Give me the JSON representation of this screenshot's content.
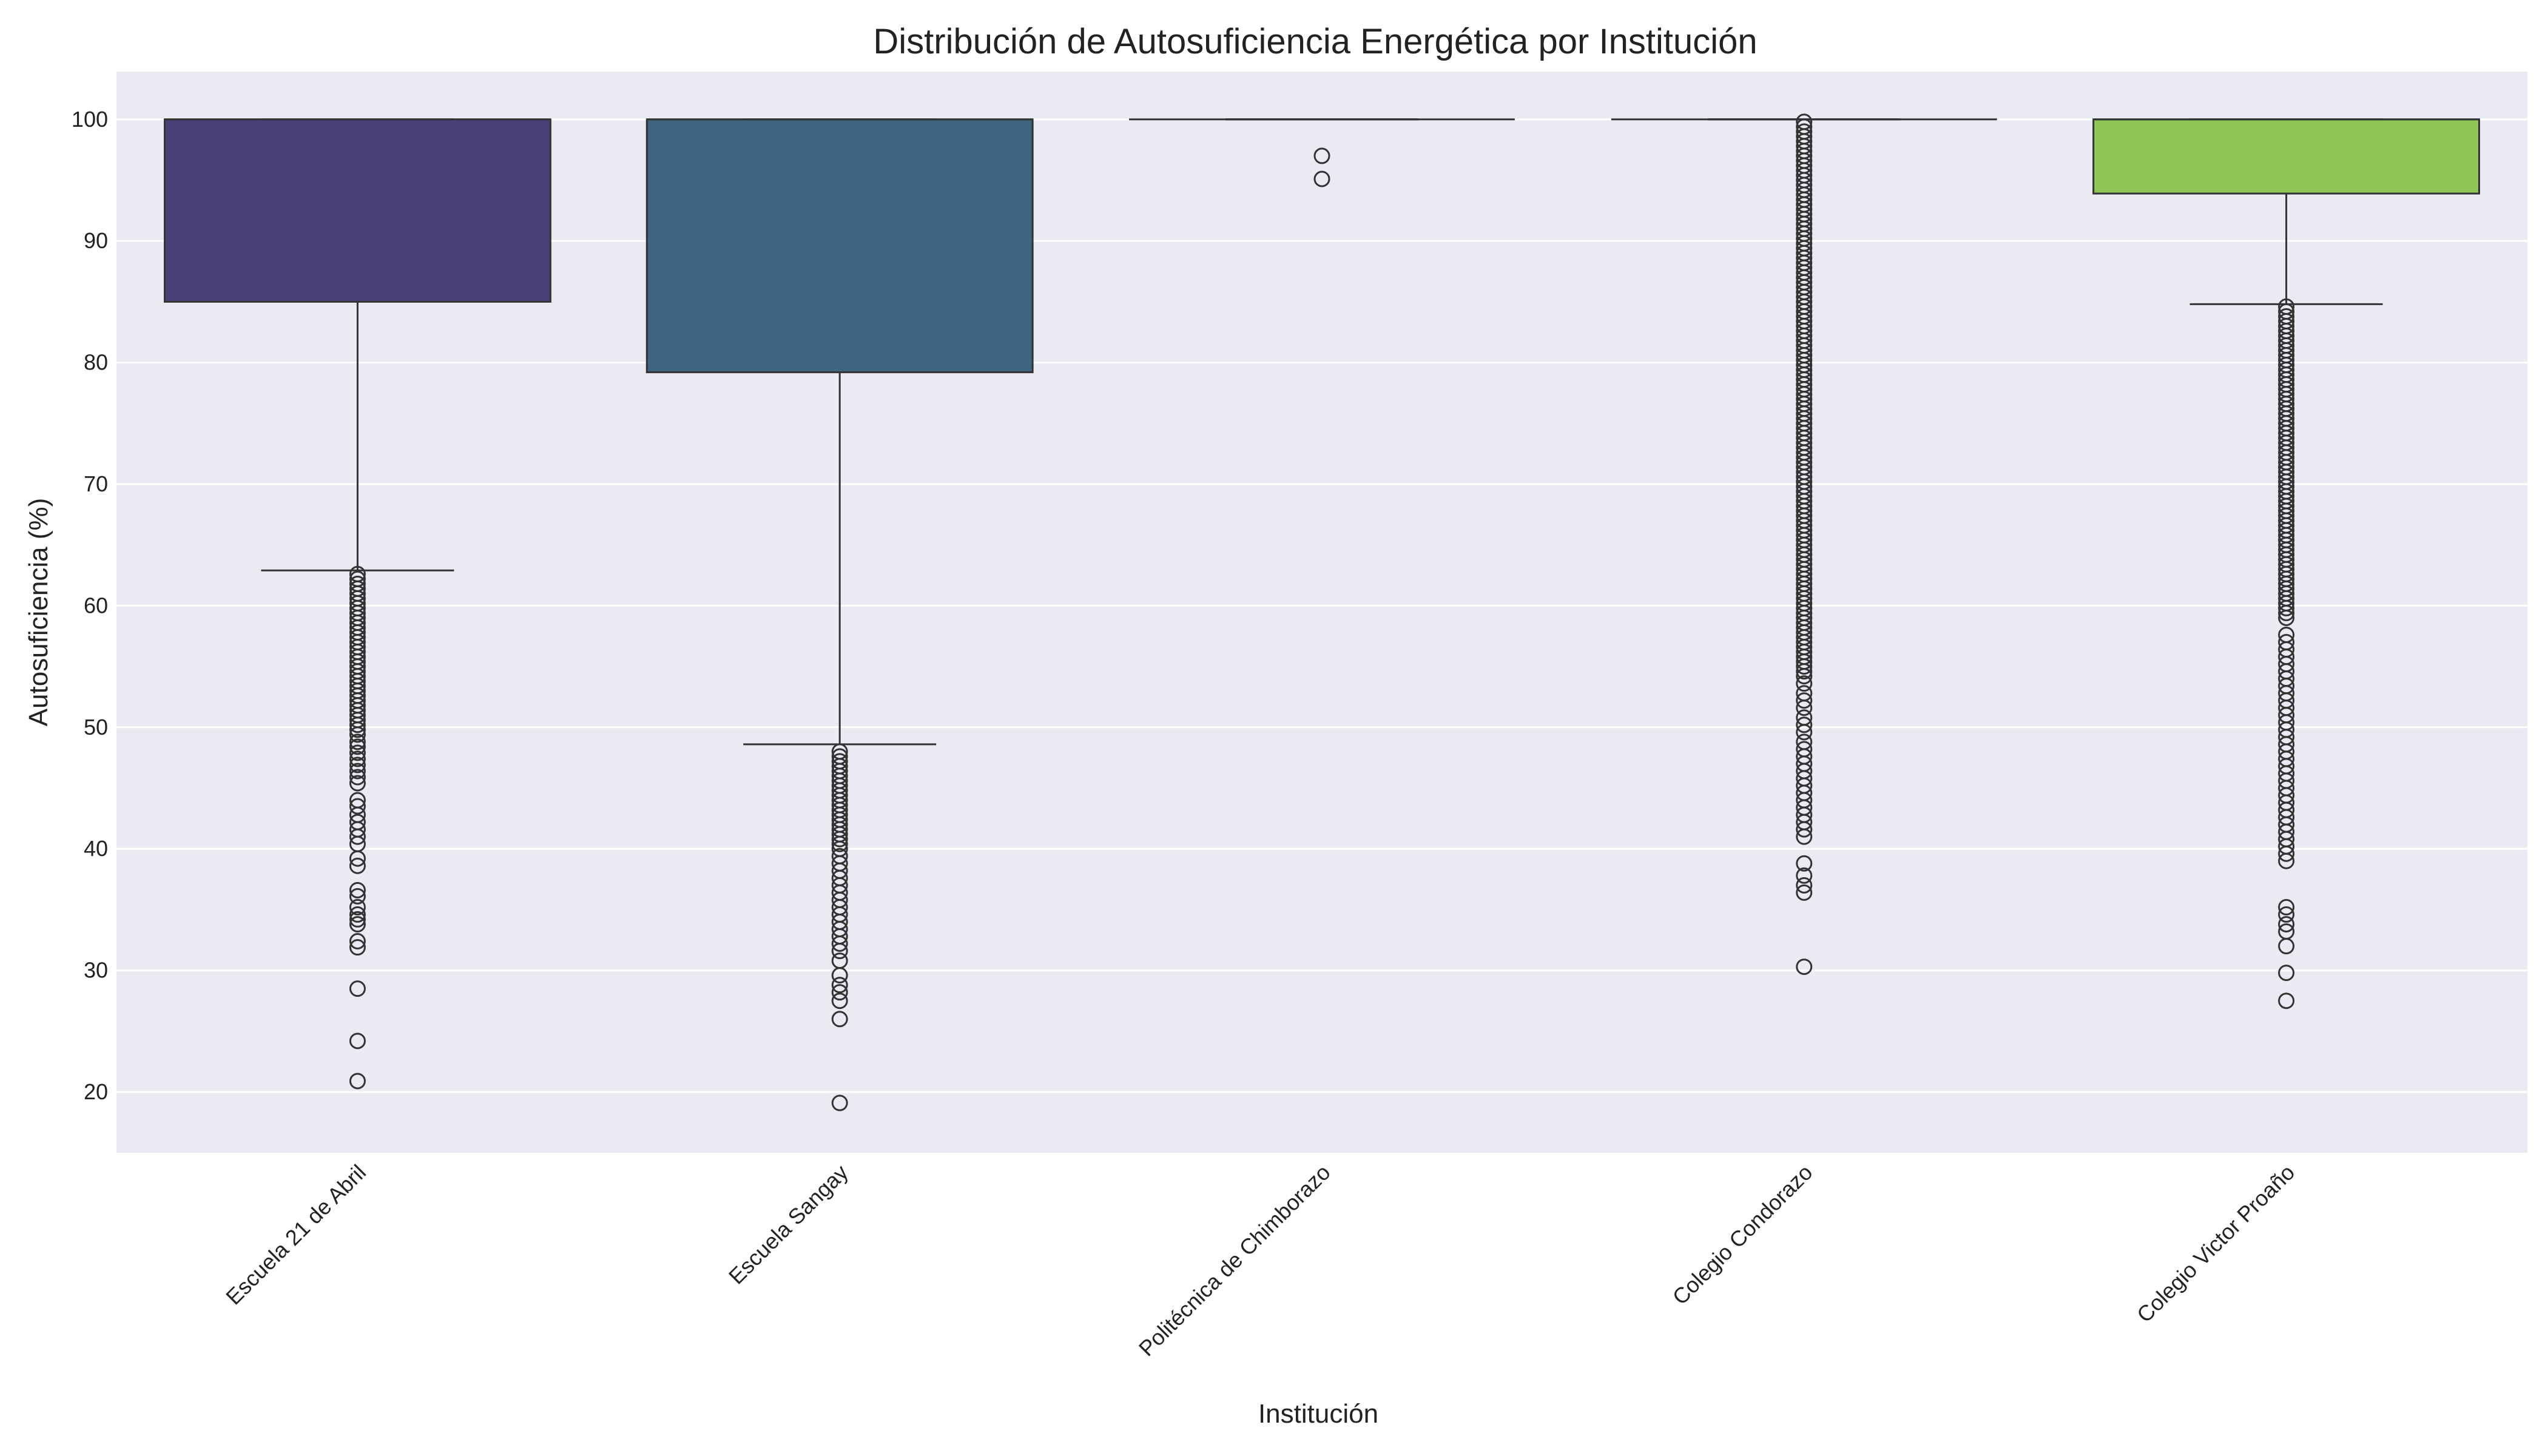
{
  "chart_data": {
    "type": "box",
    "title": "Distribución de Autosuficiencia Energética por Institución",
    "xlabel": "Institución",
    "ylabel": "Autosuficiencia (%)",
    "ylim": [
      15,
      104
    ],
    "yticks": [
      20,
      30,
      40,
      50,
      60,
      70,
      80,
      90,
      100
    ],
    "grid": true,
    "background": "#eaeaf2",
    "categories": [
      "Escuela 21 de Abril",
      "Escuela Sangay",
      "Politécnica de Chimborazo",
      "Colegio Condorazo",
      "Colegio Victor Proaño"
    ],
    "series": [
      {
        "category": "Escuela 21 de Abril",
        "color": "#4a3f77",
        "q1": 85.0,
        "median": 100,
        "q3": 100,
        "whisker_low": 62.9,
        "whisker_high": 100,
        "outliers": [
          62.6,
          62.2,
          61.8,
          61.4,
          61.0,
          60.6,
          60.2,
          59.8,
          59.4,
          59.0,
          58.6,
          58.2,
          57.8,
          57.4,
          57.0,
          56.6,
          56.2,
          55.8,
          55.4,
          55.0,
          54.6,
          54.2,
          53.8,
          53.4,
          53.0,
          52.6,
          52.2,
          51.8,
          51.4,
          51.0,
          50.6,
          50.2,
          49.8,
          49.4,
          48.8,
          48.4,
          47.9,
          47.4,
          46.9,
          46.4,
          45.9,
          45.4,
          44.0,
          43.5,
          42.8,
          42.2,
          41.6,
          41.0,
          40.4,
          39.2,
          38.6,
          36.6,
          36.1,
          35.2,
          34.6,
          34.2,
          33.8,
          32.4,
          31.9,
          28.5,
          24.2,
          20.9
        ]
      },
      {
        "category": "Escuela Sangay",
        "color": "#3e6582",
        "q1": 79.2,
        "median": 100,
        "q3": 100,
        "whisker_low": 48.6,
        "whisker_high": 100,
        "outliers": [
          48.0,
          47.6,
          47.2,
          46.8,
          46.4,
          46.0,
          45.6,
          45.2,
          44.8,
          44.4,
          44.0,
          43.6,
          43.2,
          42.8,
          42.4,
          42.0,
          41.6,
          41.2,
          40.8,
          40.4,
          40.0,
          39.4,
          38.8,
          38.2,
          37.6,
          37.0,
          36.4,
          35.8,
          35.2,
          34.6,
          34.0,
          33.4,
          32.8,
          32.2,
          31.6,
          30.8,
          29.6,
          28.8,
          28.2,
          27.5,
          26.0,
          19.1
        ]
      },
      {
        "category": "Politécnica de Chimborazo",
        "color": "#2a8c86",
        "q1": 100,
        "median": 100,
        "q3": 100,
        "whisker_low": 100,
        "whisker_high": 100,
        "outliers": [
          97.0,
          95.1
        ]
      },
      {
        "category": "Colegio Condorazo",
        "color": "#3fba70",
        "q1": 100,
        "median": 100,
        "q3": 100,
        "whisker_low": 100,
        "whisker_high": 100,
        "outliers": [
          99.8,
          99.4,
          99.0,
          98.6,
          98.2,
          97.8,
          97.4,
          97.0,
          96.6,
          96.2,
          95.8,
          95.4,
          95.0,
          94.6,
          94.2,
          93.8,
          93.4,
          93.0,
          92.6,
          92.2,
          91.8,
          91.4,
          91.0,
          90.6,
          90.2,
          89.8,
          89.4,
          89.0,
          88.6,
          88.2,
          87.8,
          87.4,
          87.0,
          86.6,
          86.2,
          85.8,
          85.4,
          85.0,
          84.6,
          84.2,
          83.8,
          83.4,
          83.0,
          82.6,
          82.2,
          81.8,
          81.4,
          81.0,
          80.6,
          80.2,
          79.8,
          79.4,
          79.0,
          78.6,
          78.2,
          77.8,
          77.4,
          77.0,
          76.6,
          76.2,
          75.8,
          75.4,
          75.0,
          74.6,
          74.2,
          73.8,
          73.4,
          73.0,
          72.6,
          72.2,
          71.8,
          71.4,
          71.0,
          70.6,
          70.2,
          69.8,
          69.4,
          69.0,
          68.6,
          68.2,
          67.8,
          67.4,
          67.0,
          66.6,
          66.2,
          65.8,
          65.4,
          65.0,
          64.6,
          64.2,
          63.8,
          63.4,
          63.0,
          62.6,
          62.2,
          61.8,
          61.4,
          61.0,
          60.6,
          60.2,
          59.8,
          59.4,
          59.0,
          58.6,
          58.2,
          57.8,
          57.4,
          57.0,
          56.6,
          56.2,
          55.8,
          55.4,
          55.0,
          54.6,
          54.2,
          53.6,
          52.8,
          52.2,
          51.6,
          50.8,
          50.2,
          49.6,
          48.8,
          48.2,
          47.6,
          47.0,
          46.4,
          45.8,
          45.2,
          44.6,
          44.0,
          43.4,
          42.8,
          42.2,
          41.6,
          41.0,
          38.8,
          37.8,
          37.0,
          36.4,
          30.3
        ]
      },
      {
        "category": "Colegio Victor Proaño",
        "color": "#8fc655",
        "q1": 93.9,
        "median": 100,
        "q3": 100,
        "whisker_low": 84.8,
        "whisker_high": 100,
        "outliers": [
          84.6,
          84.2,
          83.8,
          83.4,
          83.0,
          82.6,
          82.2,
          81.8,
          81.4,
          81.0,
          80.6,
          80.2,
          79.8,
          79.4,
          79.0,
          78.6,
          78.2,
          77.8,
          77.4,
          77.0,
          76.6,
          76.2,
          75.8,
          75.4,
          75.0,
          74.6,
          74.2,
          73.8,
          73.4,
          73.0,
          72.6,
          72.2,
          71.8,
          71.4,
          71.0,
          70.6,
          70.2,
          69.8,
          69.4,
          69.0,
          68.6,
          68.2,
          67.8,
          67.4,
          67.0,
          66.6,
          66.2,
          65.8,
          65.4,
          65.0,
          64.6,
          64.2,
          63.8,
          63.4,
          63.0,
          62.6,
          62.2,
          61.8,
          61.4,
          61.0,
          60.6,
          60.2,
          59.8,
          59.4,
          59.0,
          57.6,
          57.0,
          56.4,
          55.8,
          55.2,
          54.6,
          54.0,
          53.4,
          52.8,
          52.2,
          51.6,
          51.0,
          50.4,
          49.8,
          49.2,
          48.6,
          48.0,
          47.4,
          46.8,
          46.2,
          45.6,
          45.0,
          44.4,
          43.8,
          43.2,
          42.6,
          42.0,
          41.4,
          40.8,
          40.2,
          39.6,
          39.0,
          35.2,
          34.6,
          33.8,
          33.2,
          32.0,
          29.8,
          27.5
        ]
      }
    ]
  }
}
